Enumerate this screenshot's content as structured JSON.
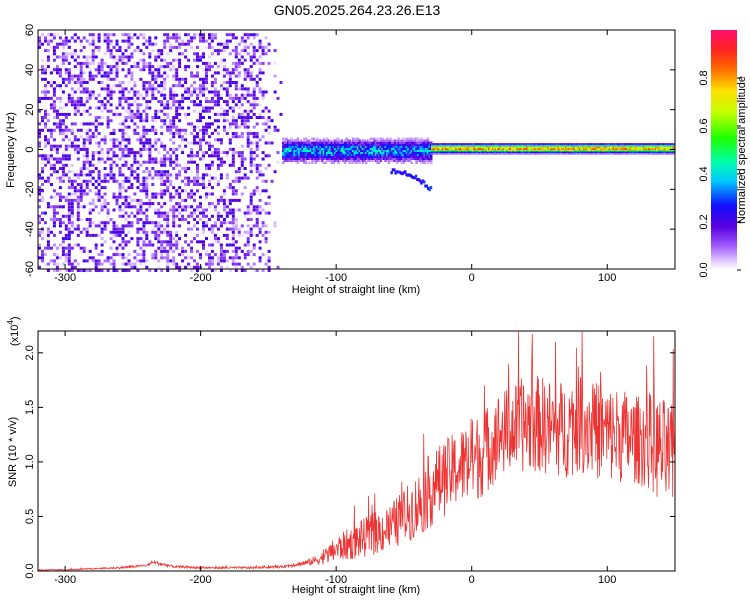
{
  "chart_data": [
    {
      "type": "heatmap",
      "title": "GN05.2025.264.23.26.E13",
      "xlabel": "Height of straight line (km)",
      "ylabel": "Frequency (Hz)",
      "xlim": [
        -320,
        150
      ],
      "ylim": [
        -60,
        60
      ],
      "xticks": [
        -300,
        -200,
        -100,
        0,
        100
      ],
      "yticks": [
        -60,
        -40,
        -20,
        0,
        20,
        40,
        60
      ],
      "tick_labels_x": [
        "-300",
        "-200",
        "-100",
        "0",
        "100"
      ],
      "tick_labels_y": [
        "-60",
        "-40",
        "-20",
        "0",
        "20",
        "40",
        "60"
      ],
      "colorscale": "rainbow",
      "colorbar": {
        "label": "Normalized spectral amplitude",
        "range": [
          0,
          1
        ],
        "ticks": [
          0.0,
          0.2,
          0.4,
          0.6,
          0.8
        ],
        "tick_labels": [
          "0.0",
          "0.2",
          "0.4",
          "0.6",
          "0.8"
        ]
      },
      "features": [
        {
          "x_range": [
            -320,
            -140
          ],
          "freq_range": [
            -60,
            60
          ],
          "amplitude": 0.1
        },
        {
          "x_range": [
            -140,
            -30
          ],
          "freq_center": 0,
          "freq_halfwidth": 4,
          "amplitude": 0.4
        },
        {
          "x_range": [
            -60,
            -30
          ],
          "freq_from": -10,
          "freq_to": -20,
          "amplitude": 0.2
        },
        {
          "x_range": [
            -30,
            150
          ],
          "freq_center": 1,
          "freq_halfwidth": 1.5,
          "amplitude": 0.9
        }
      ]
    },
    {
      "type": "line",
      "title": "",
      "xlabel": "Height of straight line (km)",
      "ylabel": "SNR (10 * v/v)",
      "scale_label": "(x10",
      "scale_exp": "4",
      "xlim": [
        -320,
        150
      ],
      "ylim": [
        0,
        2.2
      ],
      "xticks": [
        -300,
        -200,
        -100,
        0,
        100
      ],
      "yticks": [
        0.0,
        0.5,
        1.0,
        1.5,
        2.0
      ],
      "tick_labels_x": [
        "-300",
        "-200",
        "-100",
        "0",
        "100"
      ],
      "tick_labels_y": [
        "0.0",
        "0.5",
        "1.0",
        "1.5",
        "2.0"
      ],
      "color": "#ee3333",
      "series": [
        {
          "x": [
            -320,
            -300,
            -280,
            -260,
            -240,
            -235,
            -220,
            -200,
            -180,
            -160,
            -140,
            -130,
            -120,
            -110,
            -100,
            -90,
            -80,
            -70,
            -60,
            -50,
            -40,
            -30,
            -20,
            -10,
            0,
            10,
            20,
            30,
            40,
            50,
            60,
            70,
            80,
            90,
            100,
            110,
            120,
            130,
            140,
            150
          ],
          "y": [
            0.01,
            0.01,
            0.02,
            0.03,
            0.05,
            0.08,
            0.04,
            0.03,
            0.03,
            0.03,
            0.04,
            0.06,
            0.08,
            0.12,
            0.2,
            0.25,
            0.3,
            0.35,
            0.4,
            0.5,
            0.6,
            0.75,
            0.85,
            0.95,
            1.0,
            1.1,
            1.25,
            1.3,
            1.35,
            1.35,
            1.3,
            1.3,
            1.4,
            1.3,
            1.25,
            1.25,
            1.2,
            1.2,
            1.1,
            1.0
          ],
          "spread": [
            0.005,
            0.005,
            0.005,
            0.01,
            0.01,
            0.02,
            0.01,
            0.01,
            0.01,
            0.01,
            0.01,
            0.02,
            0.03,
            0.06,
            0.12,
            0.15,
            0.18,
            0.2,
            0.22,
            0.25,
            0.3,
            0.35,
            0.35,
            0.35,
            0.4,
            0.4,
            0.4,
            0.4,
            0.45,
            0.45,
            0.45,
            0.45,
            0.5,
            0.45,
            0.45,
            0.45,
            0.4,
            0.45,
            0.5,
            0.5
          ]
        }
      ]
    }
  ]
}
